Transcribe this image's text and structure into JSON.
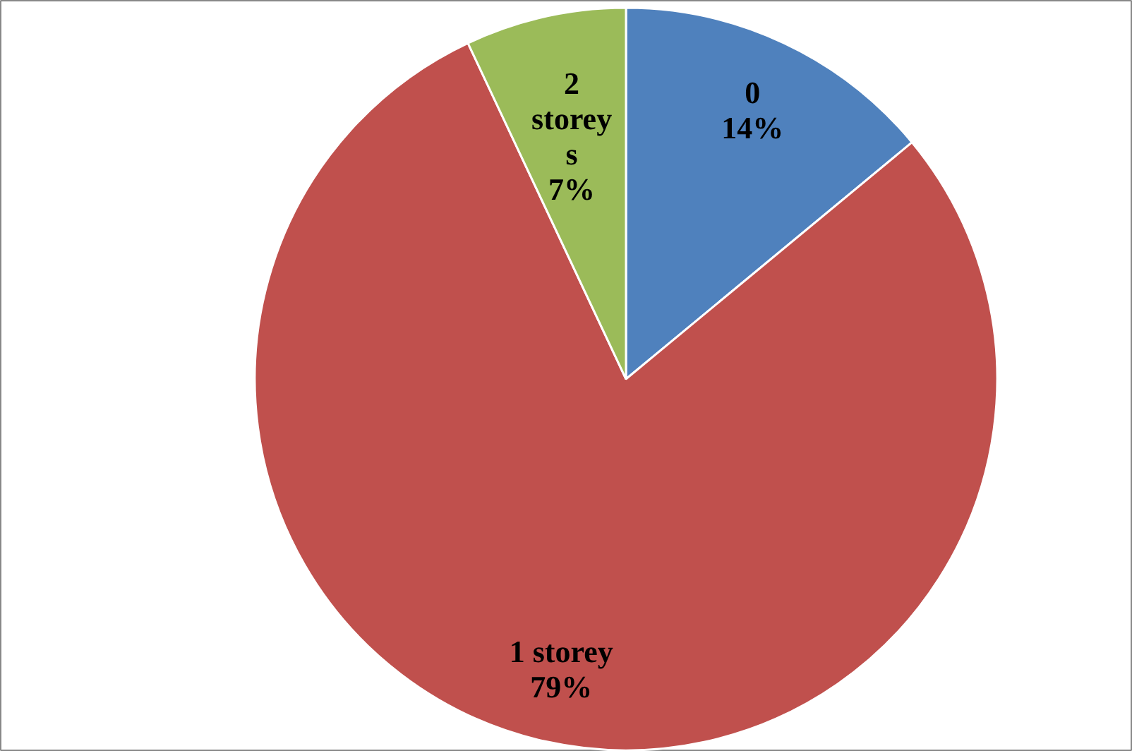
{
  "chart_data": {
    "type": "pie",
    "categories": [
      "0",
      "1 storey",
      "2 storeys"
    ],
    "values": [
      14,
      79,
      7
    ],
    "colors": [
      "#4f81bd",
      "#c0504d",
      "#9bbb59"
    ],
    "value_labels": [
      "14%",
      "79%",
      "7%"
    ]
  }
}
